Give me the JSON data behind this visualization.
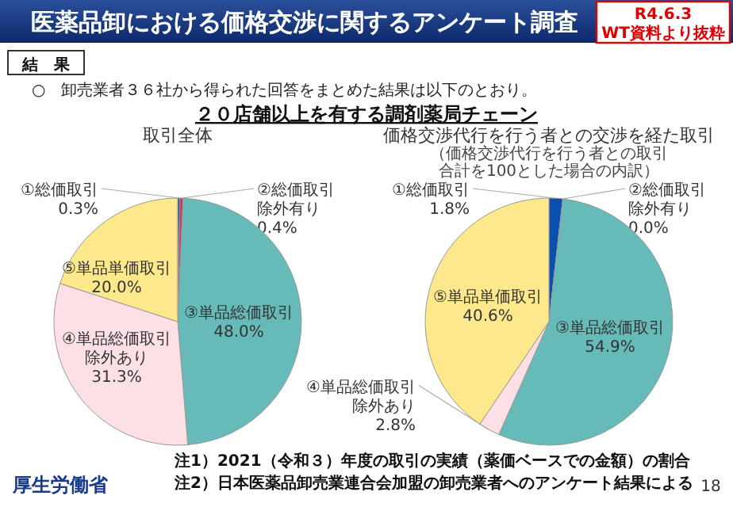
{
  "chart_data": [
    {
      "type": "other",
      "title": "医薬品卸における価格交渉に関するアンケート調査",
      "annotations": [
        "R4.6.3",
        "WT資料より抜粋",
        "結　果",
        "○　卸売業者３６社から得られた回答をまとめた結果は以下のとおり。",
        "２０店舗以上を有する調剤薬局チェーン",
        "注1）2021（令和３）年度の取引の実績（薬価ベースでの金額）の割合",
        "注2）日本医薬品卸売業連合会加盟の卸売業者へのアンケート結果による",
        "厚生労働省",
        "18"
      ]
    },
    {
      "type": "pie",
      "title": "取引全体",
      "categories": [
        "①総価取引",
        "②総価取引除外有り",
        "③単品総価取引",
        "④単品総価取引除外あり",
        "⑤単品単価取引"
      ],
      "values": [
        0.3,
        0.4,
        48.0,
        31.3,
        20.0
      ],
      "value_labels": [
        "0.3%",
        "0.4%",
        "48.0%",
        "31.3%",
        "20.0%"
      ],
      "colors": [
        "#0a4fb0",
        "#d8305e",
        "#66bab7",
        "#fde0e6",
        "#fde98c"
      ]
    },
    {
      "type": "pie",
      "title": "価格交渉代行を行う者との交渉を経た取引",
      "subtitle": "（価格交渉代行を行う者との取引合計を100とした場合の内訳）",
      "categories": [
        "①総価取引",
        "②総価取引除外有り",
        "③単品総価取引",
        "④単品総価取引除外あり",
        "⑤単品単価取引"
      ],
      "values": [
        1.8,
        0.0,
        54.9,
        2.8,
        40.6
      ],
      "value_labels": [
        "1.8%",
        "0.0%",
        "54.9%",
        "2.8%",
        "40.6%"
      ],
      "colors": [
        "#0a4fb0",
        "#d8305e",
        "#66bab7",
        "#fde0e6",
        "#fde98c"
      ]
    }
  ]
}
